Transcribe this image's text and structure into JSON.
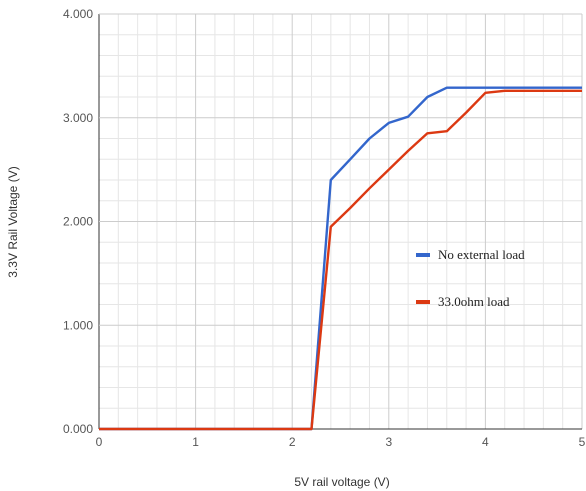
{
  "chart_data": {
    "type": "line",
    "xlabel": "5V rail voltage (V)",
    "ylabel": "3.3V Rail Voltage (V)",
    "xlim": [
      0,
      5
    ],
    "ylim": [
      0,
      4
    ],
    "x_ticks": [
      "0",
      "1",
      "2",
      "3",
      "4",
      "5"
    ],
    "y_ticks": [
      "0.000",
      "1.000",
      "2.000",
      "3.000",
      "4.000"
    ],
    "x_minor_step": 0.2,
    "y_minor_step": 0.2,
    "grid": true,
    "legend_position": "right",
    "series": [
      {
        "name": "No external load",
        "color": "#3366cc",
        "x": [
          0,
          2.2,
          2.4,
          2.6,
          2.8,
          3.0,
          3.2,
          3.4,
          3.6,
          3.8,
          4.0,
          4.2,
          4.4,
          4.6,
          4.8,
          5.0
        ],
        "y": [
          0,
          0,
          2.4,
          2.6,
          2.8,
          2.95,
          3.01,
          3.2,
          3.29,
          3.29,
          3.29,
          3.29,
          3.29,
          3.29,
          3.29,
          3.29
        ]
      },
      {
        "name": "33.0ohm load",
        "color": "#dc3912",
        "x": [
          0,
          2.2,
          2.4,
          2.6,
          2.8,
          3.0,
          3.2,
          3.4,
          3.6,
          3.8,
          4.0,
          4.2,
          4.4,
          4.6,
          4.8,
          5.0
        ],
        "y": [
          0,
          0,
          1.95,
          2.13,
          2.32,
          2.5,
          2.68,
          2.85,
          2.87,
          3.05,
          3.24,
          3.26,
          3.26,
          3.26,
          3.26,
          3.26
        ]
      }
    ]
  }
}
